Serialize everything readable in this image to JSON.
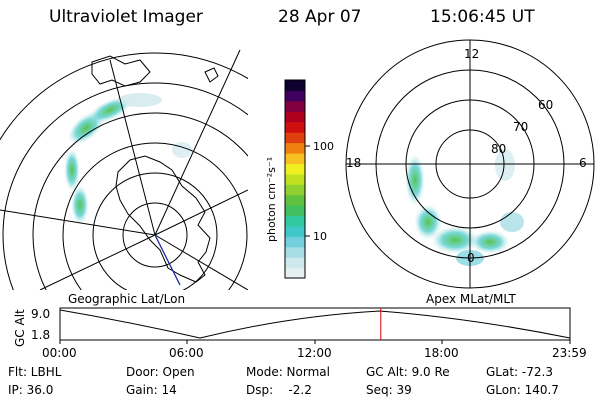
{
  "header": {
    "instrument": "Ultraviolet Imager",
    "date": "28 Apr 07",
    "time": "15:06:45 UT"
  },
  "colorbar": {
    "label": "photon cm⁻²s⁻¹",
    "ticks": [
      "100",
      "10"
    ],
    "colors": [
      "#e6f0f0",
      "#cfe8ec",
      "#a8dde6",
      "#72d0dc",
      "#40c8c8",
      "#30c8a0",
      "#40c060",
      "#60c040",
      "#90d030",
      "#c0e020",
      "#f0f020",
      "#f8c020",
      "#f08010",
      "#e04010",
      "#d01010",
      "#b00020",
      "#800040",
      "#400060",
      "#100030"
    ]
  },
  "geo_map": {
    "label": "Geographic Lat/Lon"
  },
  "polar_plot": {
    "label": "Apex MLat/MLT",
    "mlt_labels": {
      "top": "12",
      "left": "18",
      "right": "6",
      "bottom": "0"
    },
    "lat_labels": [
      "60",
      "70",
      "80"
    ]
  },
  "timeline": {
    "ylabel": "GC Alt",
    "yticks": [
      "9.0",
      "1.8"
    ],
    "xticks": [
      "00:00",
      "06:00",
      "12:00",
      "18:00",
      "23:59"
    ],
    "marker_fraction": 0.629
  },
  "status": {
    "row1": {
      "filter": "Flt: LBHL",
      "door": "Door: Open",
      "mode": "Mode: Normal",
      "gcalt": "GC Alt: 9.0 Re",
      "glat": "GLat: -72.3"
    },
    "row2": {
      "ip": "IP: 36.0",
      "gain": "Gain: 14",
      "dsp": "Dsp:    -2.2",
      "seq": "Seq: 39",
      "glon": "GLon: 140.7"
    }
  }
}
